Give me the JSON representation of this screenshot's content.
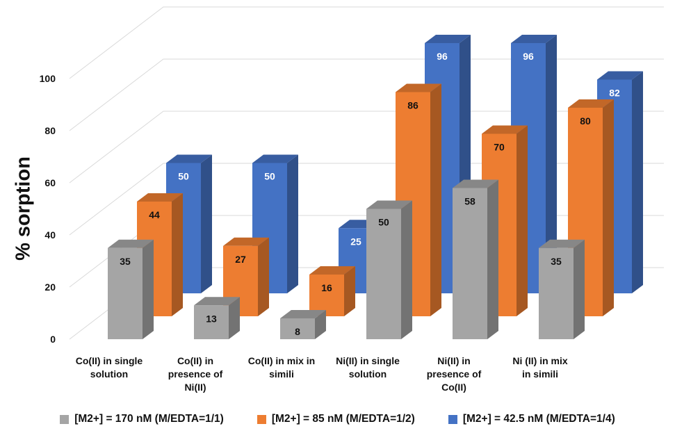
{
  "chart_data": {
    "type": "bar",
    "title": "",
    "xlabel": "",
    "ylabel": "% sorption",
    "ylim": [
      0,
      100
    ],
    "yticks": [
      "0",
      "20",
      "40",
      "60",
      "80",
      "100"
    ],
    "grid": true,
    "legend_position": "bottom",
    "categories": [
      "Co(II) in single solution",
      "Co(II) in presence of Ni(II)",
      "Co(II) in mix in simili",
      "Ni(II) in single solution",
      "Ni(II) in presence of Co(II)",
      "Ni (II) in mix in simili"
    ],
    "series": [
      {
        "name": "[M2+] = 170 nM (M/EDTA=1/1)",
        "color": "#a5a5a5",
        "values": [
          35,
          13,
          8,
          50,
          58,
          35
        ]
      },
      {
        "name": "[M2+] = 85 nM (M/EDTA=1/2)",
        "color": "#ed7d31",
        "values": [
          44,
          27,
          16,
          86,
          70,
          80
        ]
      },
      {
        "name": "[M2+] = 42.5 nM (M/EDTA=1/4)",
        "color": "#4472c4",
        "values": [
          50,
          50,
          25,
          96,
          96,
          82
        ]
      }
    ]
  }
}
